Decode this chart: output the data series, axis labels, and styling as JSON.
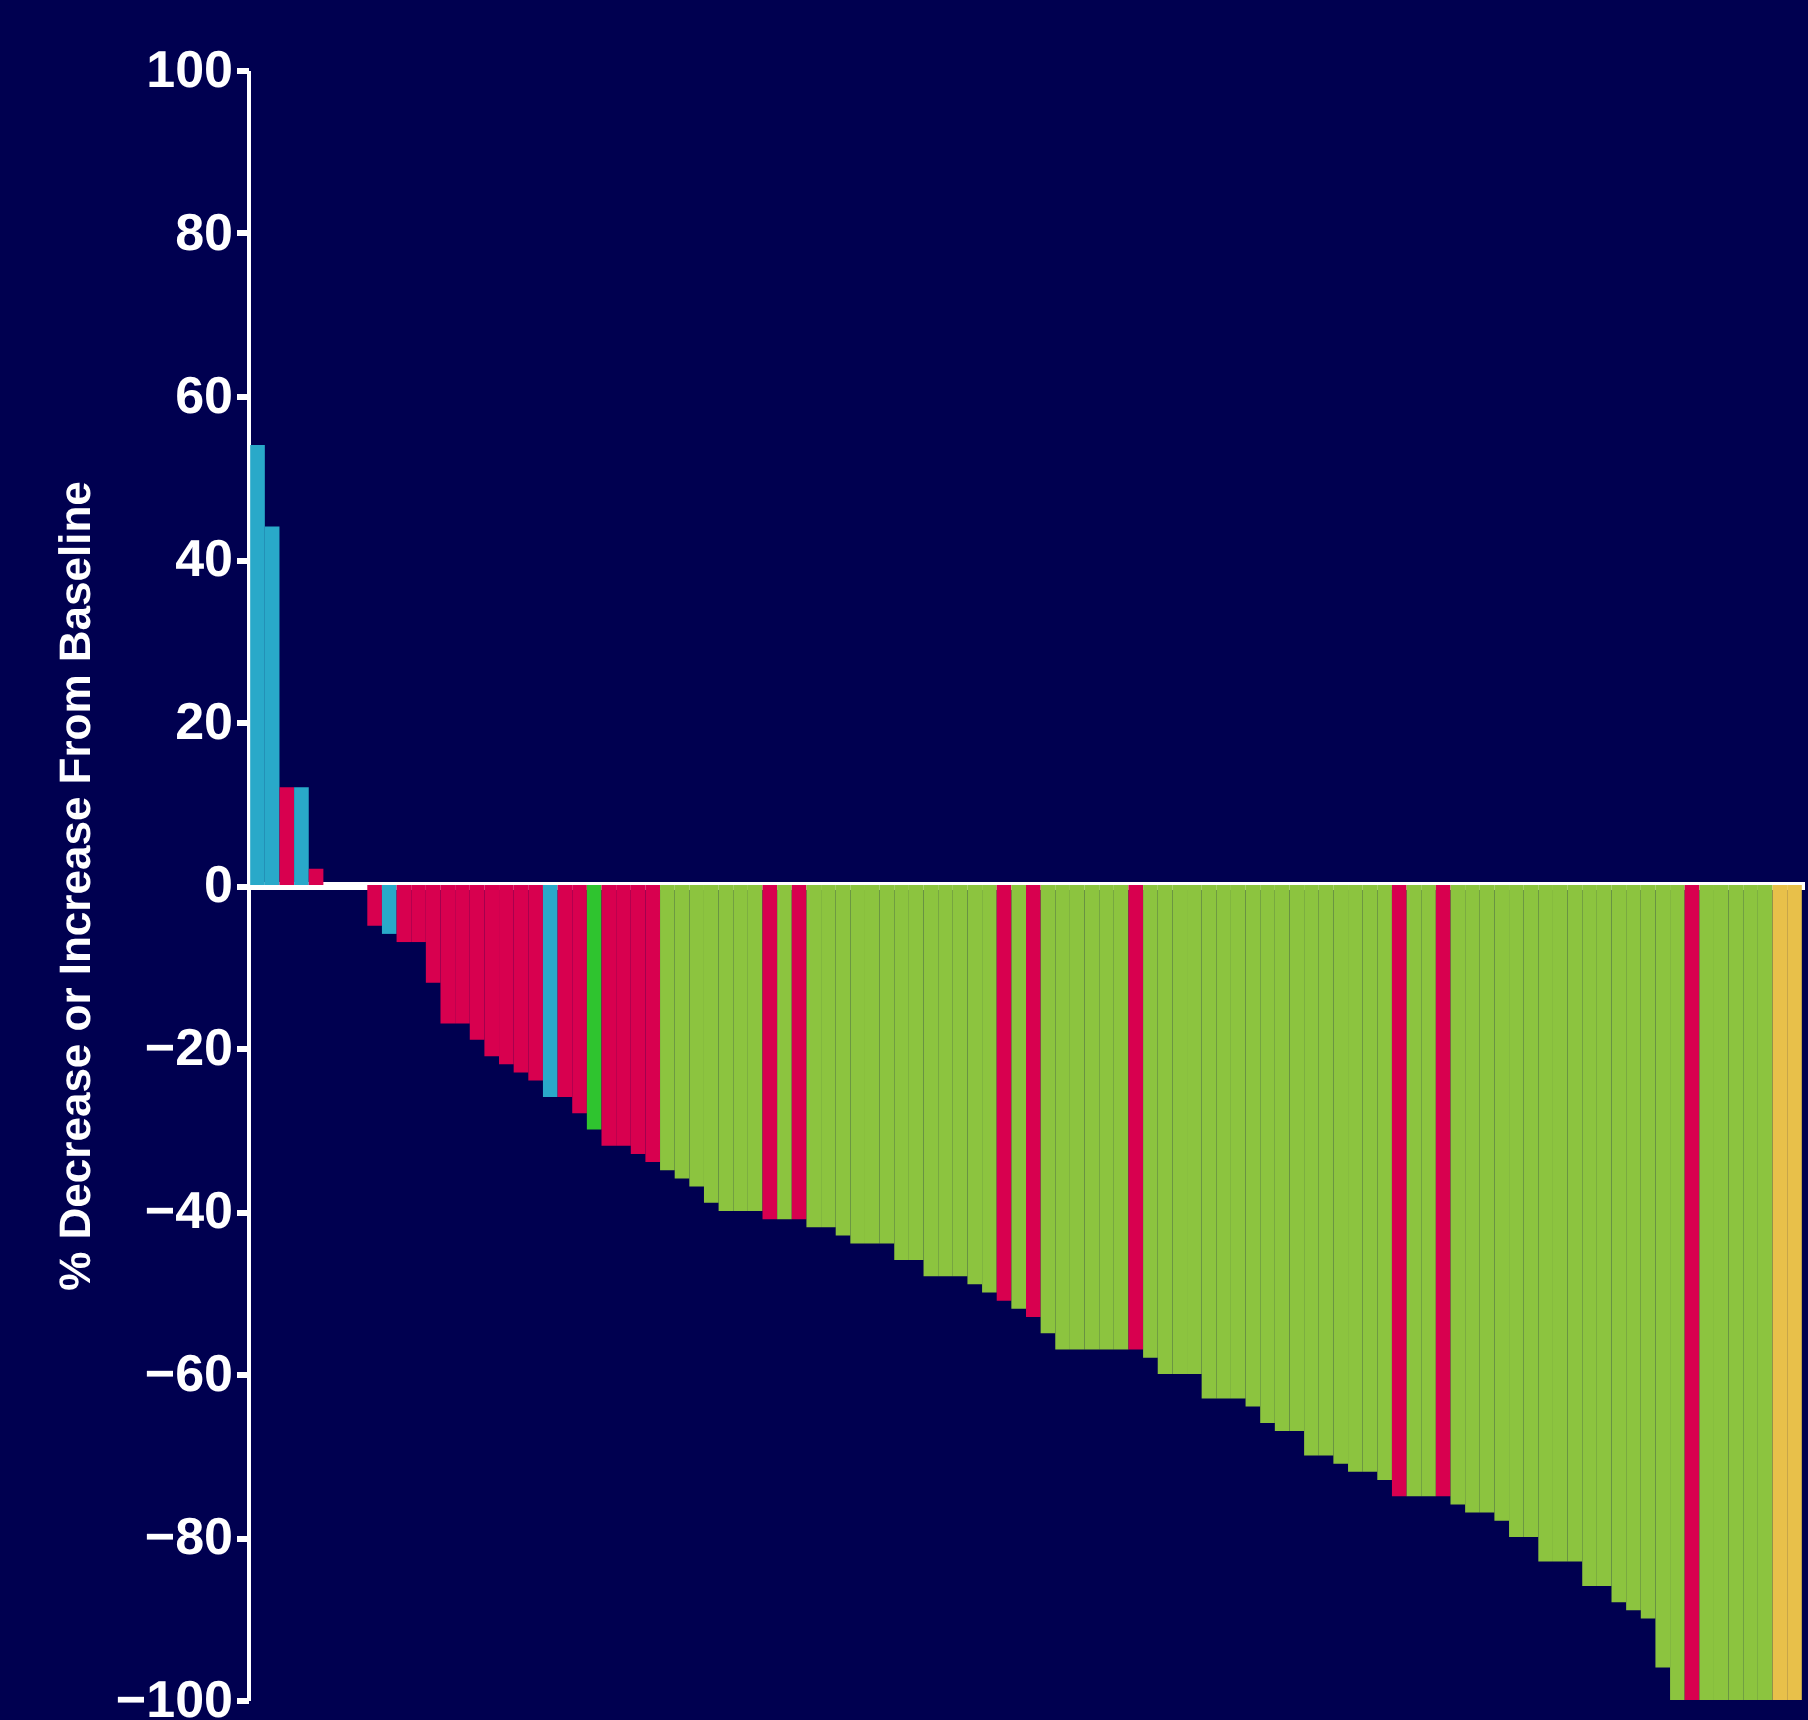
{
  "chart_data": {
    "type": "bar",
    "ylabel": "% Decrease or Increase From Baseline",
    "categories": [
      null,
      null,
      null,
      null,
      null,
      null,
      null,
      null,
      null,
      null,
      null,
      null,
      null,
      null,
      null,
      null,
      null,
      null,
      null,
      null,
      null,
      null,
      null,
      null,
      null,
      null,
      null,
      null,
      null,
      null,
      null,
      null,
      null,
      null,
      null,
      null,
      null,
      null,
      null,
      null,
      null,
      null,
      null,
      null,
      null,
      null,
      null,
      null,
      null,
      null,
      null,
      null,
      null,
      null,
      null,
      null,
      null,
      null,
      null,
      null,
      null,
      null,
      null,
      null,
      null,
      null,
      null,
      null,
      null,
      null,
      null,
      null,
      null,
      null,
      null,
      null,
      null,
      null,
      null,
      null,
      null,
      null,
      null,
      null,
      null,
      null,
      null,
      null,
      null,
      null,
      null,
      null,
      null,
      null,
      null,
      null,
      null,
      null,
      null,
      null,
      null,
      null,
      null,
      null,
      null,
      null
    ],
    "values": [
      54,
      44,
      12,
      12,
      2,
      0,
      0,
      0,
      -5,
      -6,
      -7,
      -7,
      -12,
      -17,
      -17,
      -19,
      -21,
      -22,
      -23,
      -24,
      -26,
      -26,
      -28,
      -30,
      -32,
      -32,
      -33,
      -34,
      -35,
      -36,
      -37,
      -39,
      -40,
      -40,
      -40,
      -41,
      -41,
      -41,
      -42,
      -42,
      -43,
      -44,
      -44,
      -44,
      -46,
      -46,
      -48,
      -48,
      -48,
      -49,
      -50,
      -51,
      -52,
      -53,
      -55,
      -57,
      -57,
      -57,
      -57,
      -57,
      -57,
      -58,
      -60,
      -60,
      -60,
      -63,
      -63,
      -63,
      -64,
      -66,
      -67,
      -67,
      -70,
      -70,
      -71,
      -72,
      -72,
      -73,
      -75,
      -75,
      -75,
      -75,
      -76,
      -77,
      -77,
      -78,
      -80,
      -80,
      -83,
      -83,
      -83,
      -86,
      -86,
      -88,
      -89,
      -90,
      -96,
      -100,
      -100,
      -100,
      -100,
      -100,
      -100,
      -100,
      -100,
      -100
    ],
    "colors": [
      "#29a9c9",
      "#29a9c9",
      "#d8004f",
      "#29a9c9",
      "#d8004f",
      "#8cc43f",
      "#8cc43f",
      "#8cc43f",
      "#d8004f",
      "#29a9c9",
      "#d8004f",
      "#d8004f",
      "#d8004f",
      "#d8004f",
      "#d8004f",
      "#d8004f",
      "#d8004f",
      "#d8004f",
      "#d8004f",
      "#d8004f",
      "#29a9c9",
      "#d8004f",
      "#d8004f",
      "#2fc42f",
      "#d8004f",
      "#d8004f",
      "#d8004f",
      "#d8004f",
      "#8cc43f",
      "#8cc43f",
      "#8cc43f",
      "#8cc43f",
      "#8cc43f",
      "#8cc43f",
      "#8cc43f",
      "#d8004f",
      "#8cc43f",
      "#d8004f",
      "#8cc43f",
      "#8cc43f",
      "#8cc43f",
      "#8cc43f",
      "#8cc43f",
      "#8cc43f",
      "#8cc43f",
      "#8cc43f",
      "#8cc43f",
      "#8cc43f",
      "#8cc43f",
      "#8cc43f",
      "#8cc43f",
      "#d8004f",
      "#8cc43f",
      "#d8004f",
      "#8cc43f",
      "#8cc43f",
      "#8cc43f",
      "#8cc43f",
      "#8cc43f",
      "#8cc43f",
      "#d8004f",
      "#8cc43f",
      "#8cc43f",
      "#8cc43f",
      "#8cc43f",
      "#8cc43f",
      "#8cc43f",
      "#8cc43f",
      "#8cc43f",
      "#8cc43f",
      "#8cc43f",
      "#8cc43f",
      "#8cc43f",
      "#8cc43f",
      "#8cc43f",
      "#8cc43f",
      "#8cc43f",
      "#8cc43f",
      "#d8004f",
      "#8cc43f",
      "#8cc43f",
      "#d8004f",
      "#8cc43f",
      "#8cc43f",
      "#8cc43f",
      "#8cc43f",
      "#8cc43f",
      "#8cc43f",
      "#8cc43f",
      "#8cc43f",
      "#8cc43f",
      "#8cc43f",
      "#8cc43f",
      "#8cc43f",
      "#8cc43f",
      "#8cc43f",
      "#8cc43f",
      "#8cc43f",
      "#d8004f",
      "#8cc43f",
      "#8cc43f",
      "#8cc43f",
      "#8cc43f",
      "#8cc43f",
      "#e8c04a",
      "#e8c04a"
    ],
    "ylim": [
      -100,
      100
    ],
    "yticks": [
      100,
      80,
      60,
      40,
      20,
      0,
      {
        "value": -20,
        "label": "−20"
      },
      {
        "value": -40,
        "label": "−40"
      },
      {
        "value": -60,
        "label": "−60"
      },
      {
        "value": -80,
        "label": "−80"
      },
      {
        "value": -100,
        "label": "−100"
      }
    ],
    "tick_labels": "y"
  }
}
